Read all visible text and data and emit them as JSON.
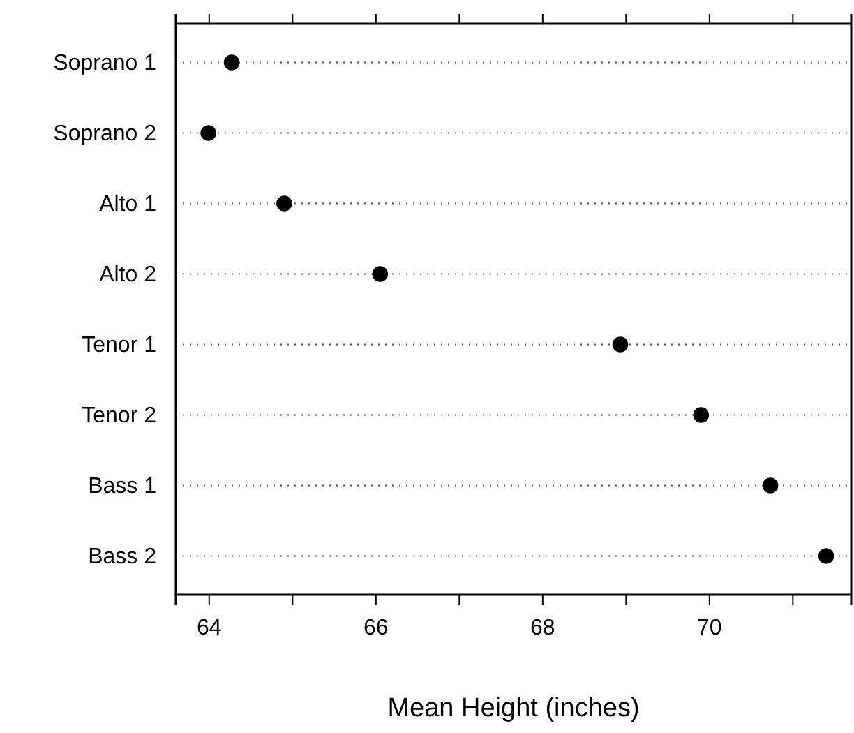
{
  "chart_data": {
    "type": "scatter",
    "orientation": "horizontal",
    "xlabel": "Mean Height (inches)",
    "categories": [
      "Soprano 1",
      "Soprano 2",
      "Alto 1",
      "Alto 2",
      "Tenor 1",
      "Tenor 2",
      "Bass 1",
      "Bass 2"
    ],
    "series": [
      {
        "color": "#000000",
        "values": [
          64.27,
          63.99,
          64.9,
          66.05,
          68.93,
          69.9,
          70.73,
          71.4
        ]
      }
    ],
    "xlim": [
      63.6,
      71.7
    ],
    "xticks": [
      64,
      {
        "value": 65,
        "label": null
      },
      66,
      {
        "value": 67,
        "label": null
      },
      68,
      {
        "value": 69,
        "label": null
      },
      70,
      {
        "value": 71,
        "label": null
      }
    ],
    "grid": "y",
    "marker": "circle"
  }
}
